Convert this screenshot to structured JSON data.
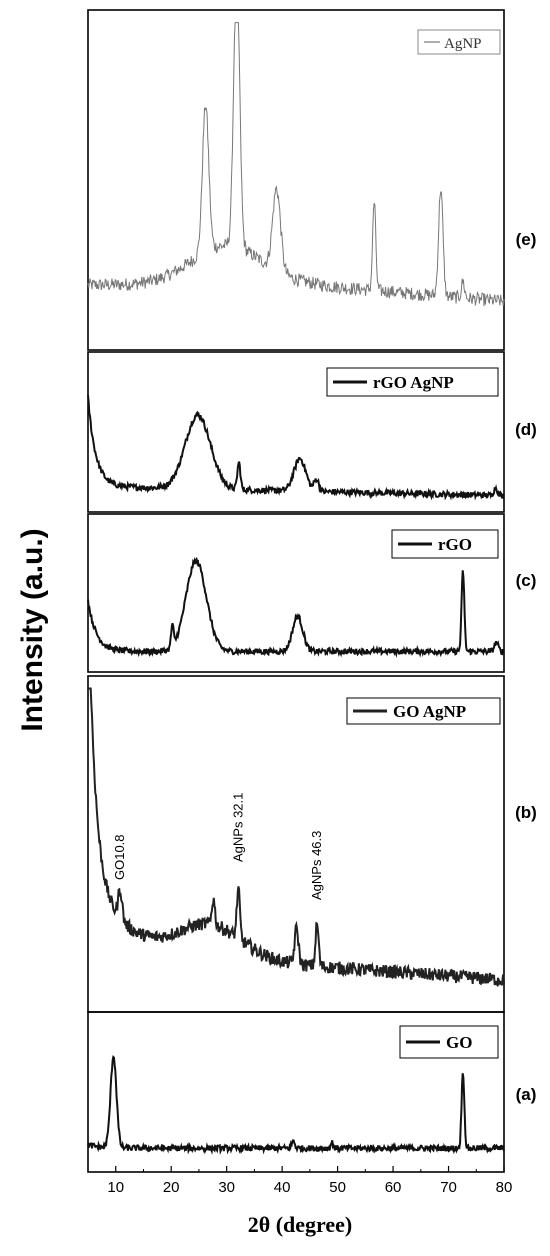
{
  "chart_data": {
    "type": "line",
    "ylabel": "Intensity (a.u.)",
    "xlabel": "2θ (degree)",
    "xlim": [
      5,
      80
    ],
    "xticks": [
      "10",
      "20",
      "30",
      "40",
      "50",
      "60",
      "70",
      "80"
    ],
    "panels": [
      {
        "tag": "(e)",
        "legend": "AgNP",
        "color": "#777777",
        "baseline": 0.18,
        "peaks": [
          {
            "x": 26.2,
            "h": 0.45,
            "w": 0.8
          },
          {
            "x": 31.8,
            "h": 0.86,
            "w": 0.75
          },
          {
            "x": 39.0,
            "h": 0.25,
            "w": 1.0
          },
          {
            "x": 56.6,
            "h": 0.27,
            "w": 0.4
          },
          {
            "x": 68.6,
            "h": 0.33,
            "w": 0.55
          },
          {
            "x": 72.6,
            "h": 0.05,
            "w": 0.4
          }
        ]
      },
      {
        "tag": "(d)",
        "legend": "rGO AgNP",
        "color": "#111111",
        "baseline": 0.12,
        "peaks": [
          {
            "x": 24.8,
            "h": 0.5,
            "w": 3.2
          },
          {
            "x": 32.2,
            "h": 0.18,
            "w": 0.4
          },
          {
            "x": 43.2,
            "h": 0.22,
            "w": 1.5
          },
          {
            "x": 46.2,
            "h": 0.08,
            "w": 0.6
          },
          {
            "x": 78.5,
            "h": 0.05,
            "w": 0.5
          }
        ]
      },
      {
        "tag": "(c)",
        "legend": "rGO",
        "color": "#111111",
        "baseline": 0.1,
        "peaks": [
          {
            "x": 24.5,
            "h": 0.62,
            "w": 2.6
          },
          {
            "x": 20.2,
            "h": 0.15,
            "w": 0.3
          },
          {
            "x": 42.8,
            "h": 0.24,
            "w": 1.3
          },
          {
            "x": 72.6,
            "h": 0.55,
            "w": 0.35
          },
          {
            "x": 78.6,
            "h": 0.06,
            "w": 0.5
          }
        ]
      },
      {
        "tag": "(b)",
        "legend": "GO AgNP",
        "color": "#222222",
        "baseline": 0.13,
        "peaks": [
          {
            "x": 10.8,
            "h": 0.09,
            "w": 0.5
          },
          {
            "x": 27.6,
            "h": 0.08,
            "w": 0.4
          },
          {
            "x": 32.1,
            "h": 0.15,
            "w": 0.4
          },
          {
            "x": 42.6,
            "h": 0.11,
            "w": 0.5
          },
          {
            "x": 46.3,
            "h": 0.13,
            "w": 0.4
          }
        ],
        "annotations": [
          {
            "text": "GO10.8",
            "x": 10.8
          },
          {
            "text": "AgNPs 32.1",
            "x": 32.1
          },
          {
            "text": "AgNPs 46.3",
            "x": 46.3
          }
        ]
      },
      {
        "tag": "(a)",
        "legend": "GO",
        "color": "#111111",
        "baseline": 0.12,
        "peaks": [
          {
            "x": 9.6,
            "h": 0.62,
            "w": 0.75
          },
          {
            "x": 42.0,
            "h": 0.05,
            "w": 0.4
          },
          {
            "x": 49.0,
            "h": 0.04,
            "w": 0.3
          },
          {
            "x": 72.6,
            "h": 0.52,
            "w": 0.35
          }
        ]
      }
    ]
  }
}
